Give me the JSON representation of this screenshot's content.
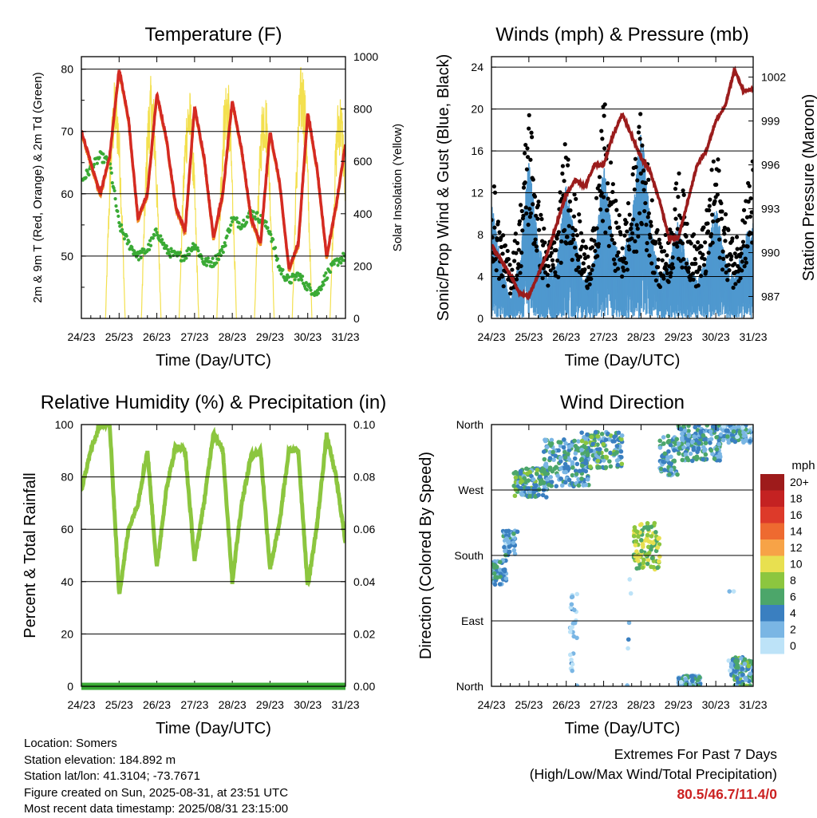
{
  "chart_data": [
    {
      "id": "temperature",
      "type": "line",
      "title": "Temperature (F)",
      "xlabel": "Time (Day/UTC)",
      "ylabel": "2m & 9m T (Red, Orange) & 2m Td (Green)",
      "y2label": "Solar Insolation (Yellow)",
      "xticks": [
        "24/23",
        "25/23",
        "26/23",
        "27/23",
        "28/23",
        "29/23",
        "30/23",
        "31/23"
      ],
      "xlim": [
        0,
        7
      ],
      "ylim": [
        40,
        82
      ],
      "yticks": [
        50,
        60,
        70,
        80
      ],
      "y2lim": [
        0,
        1000
      ],
      "y2ticks": [
        0,
        200,
        400,
        600,
        800,
        1000
      ],
      "grid": true,
      "colors": {
        "temp2m": "#d42a22",
        "temp9m": "#f08a1e",
        "dewpoint": "#3aaa35",
        "solar": "#f3e04f"
      },
      "series": [
        {
          "name": "2m T",
          "color_key": "temp2m",
          "x": [
            0,
            0.25,
            0.5,
            0.75,
            1.0,
            1.25,
            1.5,
            1.75,
            2.0,
            2.25,
            2.5,
            2.75,
            3.0,
            3.25,
            3.5,
            3.75,
            4.0,
            4.25,
            4.5,
            4.75,
            5.0,
            5.25,
            5.5,
            5.75,
            6.0,
            6.25,
            6.5,
            6.75,
            7.0
          ],
          "y": [
            70,
            65,
            60,
            66,
            80,
            72,
            56,
            60,
            76,
            69,
            58,
            54,
            74,
            66,
            53,
            60,
            75,
            67,
            56,
            52,
            70,
            62,
            48,
            52,
            73,
            64,
            50,
            58,
            68
          ]
        },
        {
          "name": "2m Td",
          "color_key": "dewpoint",
          "x": [
            0,
            0.25,
            0.5,
            0.75,
            1.0,
            1.25,
            1.5,
            1.75,
            2.0,
            2.25,
            2.5,
            2.75,
            3.0,
            3.25,
            3.5,
            3.75,
            4.0,
            4.25,
            4.5,
            4.75,
            5.0,
            5.25,
            5.5,
            5.75,
            6.0,
            6.25,
            6.5,
            6.75,
            7.0
          ],
          "y": [
            62,
            64,
            66,
            65,
            55,
            52,
            50,
            51,
            54,
            51,
            50,
            50,
            52,
            49,
            49,
            51,
            56,
            55,
            57,
            56,
            54,
            48,
            46,
            47,
            45,
            44,
            47,
            49,
            50
          ]
        },
        {
          "name": "Solar Insolation",
          "color_key": "solar",
          "axis": "y2",
          "peaks": [
            {
              "x": 0.9,
              "y": 920
            },
            {
              "x": 1.85,
              "y": 930
            },
            {
              "x": 2.85,
              "y": 890
            },
            {
              "x": 3.85,
              "y": 940
            },
            {
              "x": 4.85,
              "y": 900
            },
            {
              "x": 5.85,
              "y": 990
            },
            {
              "x": 6.85,
              "y": 880
            }
          ]
        }
      ]
    },
    {
      "id": "winds",
      "type": "scatter",
      "title": "Winds (mph) & Pressure (mb)",
      "xlabel": "Time (Day/UTC)",
      "ylabel": "Sonic/Prop Wind & Gust (Blue, Black)",
      "y2label": "Station Pressure (Maroon)",
      "xticks": [
        "24/23",
        "25/23",
        "26/23",
        "27/23",
        "28/23",
        "29/23",
        "30/23",
        "31/23"
      ],
      "xlim": [
        0,
        7
      ],
      "ylim": [
        0,
        25
      ],
      "yticks": [
        0,
        4,
        8,
        12,
        16,
        20,
        24
      ],
      "y2lim": [
        985.5,
        1003.4
      ],
      "y2ticks": [
        987,
        990,
        993,
        996,
        999,
        1002
      ],
      "grid": true,
      "colors": {
        "wind": "#4f98cf",
        "gust": "#000000",
        "pressure": "#9b1c1c"
      },
      "series": [
        {
          "name": "Sonic/Prop Wind",
          "color_key": "wind",
          "x": [
            0,
            0.25,
            0.5,
            0.75,
            1.0,
            1.25,
            1.5,
            1.75,
            2.0,
            2.25,
            2.5,
            2.75,
            3.0,
            3.25,
            3.5,
            3.75,
            4.0,
            4.25,
            4.5,
            4.75,
            5.0,
            5.25,
            5.5,
            5.75,
            6.0,
            6.25,
            6.5,
            6.75,
            7.0
          ],
          "y": [
            6,
            3,
            1,
            3,
            8,
            4,
            2,
            3,
            7,
            4,
            2,
            3,
            8,
            4,
            3,
            5,
            10,
            5,
            2,
            3,
            5,
            3,
            2,
            3,
            6,
            3,
            2,
            4,
            5
          ]
        },
        {
          "name": "Gust",
          "color_key": "gust",
          "x": [
            0,
            0.25,
            0.5,
            0.75,
            1.0,
            1.25,
            1.5,
            1.75,
            2.0,
            2.25,
            2.5,
            2.75,
            3.0,
            3.25,
            3.5,
            3.75,
            4.0,
            4.25,
            4.5,
            4.75,
            5.0,
            5.25,
            5.5,
            5.75,
            6.0,
            6.25,
            6.5,
            6.75,
            7.0
          ],
          "y": [
            10,
            6,
            4,
            7,
            15,
            8,
            5,
            6,
            13,
            8,
            5,
            6,
            15,
            9,
            6,
            9,
            14,
            9,
            5,
            6,
            10,
            7,
            5,
            7,
            12,
            7,
            5,
            8,
            11
          ]
        },
        {
          "name": "Station Pressure",
          "color_key": "pressure",
          "axis": "y2",
          "x": [
            0,
            0.25,
            0.5,
            0.75,
            1.0,
            1.25,
            1.5,
            1.75,
            2.0,
            2.25,
            2.5,
            2.75,
            3.0,
            3.25,
            3.5,
            3.75,
            4.0,
            4.25,
            4.5,
            4.75,
            5.0,
            5.25,
            5.5,
            5.75,
            6.0,
            6.25,
            6.5,
            6.75,
            7.0
          ],
          "y": [
            990.5,
            989.5,
            988.5,
            987.2,
            987.0,
            988.5,
            990.0,
            992.0,
            994.0,
            995.0,
            994.5,
            996.0,
            996.0,
            998.0,
            999.5,
            998.0,
            996.5,
            995.5,
            993.5,
            991.0,
            991.0,
            993.5,
            996.0,
            997.0,
            999.0,
            1000.0,
            1002.5,
            1001.0,
            1001.2
          ]
        }
      ]
    },
    {
      "id": "humidity",
      "type": "line",
      "title": "Relative Humidity (%) & Precipitation (in)",
      "xlabel": "Time (Day/UTC)",
      "ylabel": "Percent & Total Rainfall",
      "xticks": [
        "24/23",
        "25/23",
        "26/23",
        "27/23",
        "28/23",
        "29/23",
        "30/23",
        "31/23"
      ],
      "xlim": [
        0,
        7
      ],
      "ylim": [
        0,
        100
      ],
      "yticks": [
        0,
        20,
        40,
        60,
        80,
        100
      ],
      "y2lim": [
        0,
        0.1
      ],
      "y2ticks": [
        "0.00",
        "0.02",
        "0.04",
        "0.06",
        "0.08",
        "0.10"
      ],
      "grid": true,
      "colors": {
        "rh": "#8cc63f",
        "precip": "#3aaa35"
      },
      "series": [
        {
          "name": "Relative Humidity",
          "color_key": "rh",
          "x": [
            0,
            0.25,
            0.5,
            0.75,
            1.0,
            1.25,
            1.5,
            1.75,
            2.0,
            2.25,
            2.5,
            2.75,
            3.0,
            3.25,
            3.5,
            3.75,
            4.0,
            4.25,
            4.5,
            4.75,
            5.0,
            5.25,
            5.5,
            5.75,
            6.0,
            6.25,
            6.5,
            6.75,
            7.0
          ],
          "y": [
            75,
            90,
            100,
            100,
            35,
            60,
            70,
            90,
            45,
            75,
            92,
            90,
            48,
            70,
            97,
            90,
            40,
            70,
            88,
            90,
            45,
            62,
            90,
            90,
            38,
            62,
            96,
            80,
            55
          ]
        },
        {
          "name": "Total Precipitation",
          "color_key": "precip",
          "axis": "y2",
          "x": [
            0,
            7
          ],
          "y": [
            0,
            0
          ]
        }
      ]
    },
    {
      "id": "direction",
      "type": "scatter",
      "title": "Wind Direction",
      "xlabel": "Time (Day/UTC)",
      "ylabel": "Direction (Colored By Speed)",
      "xticks": [
        "24/23",
        "25/23",
        "26/23",
        "27/23",
        "28/23",
        "29/23",
        "30/23",
        "31/23"
      ],
      "xlim": [
        0,
        7
      ],
      "ylim": [
        0,
        360
      ],
      "yticks": [
        "North",
        "East",
        "South",
        "West",
        "North"
      ],
      "grid": true,
      "legend": {
        "title": "mph",
        "labels": [
          "20+",
          "18",
          "16",
          "14",
          "12",
          "10",
          "8",
          "6",
          "4",
          "2",
          "0"
        ],
        "colors": [
          "#9e1b1b",
          "#c42222",
          "#dd3a2a",
          "#ee6a30",
          "#f7a347",
          "#e8e050",
          "#8cc63f",
          "#4ca66a",
          "#3a7fc0",
          "#7ab6e4",
          "#bde3f8"
        ]
      },
      "clusters": [
        {
          "x0": 0.0,
          "x1": 0.4,
          "d0": 140,
          "d1": 175,
          "speed": 4
        },
        {
          "x0": 0.3,
          "x1": 0.7,
          "d0": 180,
          "d1": 215,
          "speed": 3
        },
        {
          "x0": 0.6,
          "x1": 1.5,
          "d0": 260,
          "d1": 300,
          "speed": 5
        },
        {
          "x0": 1.4,
          "x1": 2.6,
          "d0": 275,
          "d1": 340,
          "speed": 4
        },
        {
          "x0": 2.4,
          "x1": 3.5,
          "d0": 300,
          "d1": 350,
          "speed": 5
        },
        {
          "x0": 3.8,
          "x1": 4.5,
          "d0": 160,
          "d1": 225,
          "speed": 8
        },
        {
          "x0": 4.5,
          "x1": 5.0,
          "d0": 290,
          "d1": 345,
          "speed": 4
        },
        {
          "x0": 5.0,
          "x1": 6.2,
          "d0": 310,
          "d1": 360,
          "speed": 4
        },
        {
          "x0": 6.2,
          "x1": 7.0,
          "d0": 335,
          "d1": 360,
          "speed": 3
        },
        {
          "x0": 5.0,
          "x1": 5.6,
          "d0": 0,
          "d1": 15,
          "speed": 3
        },
        {
          "x0": 6.4,
          "x1": 7.0,
          "d0": 0,
          "d1": 40,
          "speed": 5
        },
        {
          "x0": 2.1,
          "x1": 2.3,
          "d0": 0,
          "d1": 130,
          "speed": 1
        },
        {
          "x0": 3.6,
          "x1": 3.8,
          "d0": 0,
          "d1": 150,
          "speed": 1
        },
        {
          "x0": 6.3,
          "x1": 6.5,
          "d0": 20,
          "d1": 170,
          "speed": 1
        }
      ]
    }
  ],
  "station_info": [
    "Location: Somers",
    "Station elevation: 184.892 m",
    "Station lat/lon: 41.3104; -73.7671",
    "Figure created on Sun, 2025-08-31, at 23:51 UTC",
    "Most recent data timestamp: 2025/08/31 23:15:00"
  ],
  "extremes": {
    "title": "Extremes For Past 7 Days",
    "subtitle": "(High/Low/Max Wind/Total Precipitation)",
    "values": "80.5/46.7/11.4/0"
  }
}
